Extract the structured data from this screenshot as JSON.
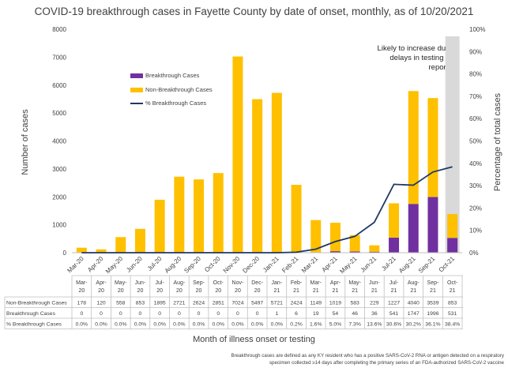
{
  "chart_data": {
    "type": "bar",
    "title": "COVID-19 breakthrough cases in Fayette County by date of onset, monthly, as of 10/20/2021",
    "xlabel": "Month of illness onset or testing",
    "ylabel": "Number of cases",
    "y2label": "Percentage of total cases",
    "ylim": [
      0,
      8000
    ],
    "y2lim": [
      0,
      100
    ],
    "yticks": [
      "0",
      "1000",
      "2000",
      "3000",
      "4000",
      "5000",
      "6000",
      "7000",
      "8000"
    ],
    "y2ticks": [
      "0%",
      "10%",
      "20%",
      "30%",
      "40%",
      "50%",
      "60%",
      "70%",
      "80%",
      "90%",
      "100%"
    ],
    "categories": [
      "Mar-20",
      "Apr-20",
      "May-20",
      "Jun-20",
      "Jul-20",
      "Aug-20",
      "Sep-20",
      "Oct-20",
      "Nov-20",
      "Dec-20",
      "Jan-21",
      "Feb-21",
      "Mar-21",
      "Apr-21",
      "May-21",
      "Jun-21",
      "Jul-21",
      "Aug-21",
      "Sep-21",
      "Oct-21"
    ],
    "table_categories": [
      [
        "Mar-",
        "20"
      ],
      [
        "Apr-",
        "20"
      ],
      [
        "May-",
        "20"
      ],
      [
        "Jun-",
        "20"
      ],
      [
        "Jul-",
        "20"
      ],
      [
        "Aug-",
        "20"
      ],
      [
        "Sep-",
        "20"
      ],
      [
        "Oct-",
        "20"
      ],
      [
        "Nov-",
        "20"
      ],
      [
        "Dec-",
        "20"
      ],
      [
        "Jan-",
        "21"
      ],
      [
        "Feb-",
        "21"
      ],
      [
        "Mar-",
        "21"
      ],
      [
        "Apr-",
        "21"
      ],
      [
        "May-",
        "21"
      ],
      [
        "Jun-",
        "21"
      ],
      [
        "Jul-",
        "21"
      ],
      [
        "Aug-",
        "21"
      ],
      [
        "Sep-",
        "21"
      ],
      [
        "Oct-",
        "21"
      ]
    ],
    "series": [
      {
        "name": "Breakthrough Cases",
        "type": "bar",
        "color": "#7030a0",
        "values": [
          0,
          0,
          0,
          0,
          0,
          0,
          0,
          0,
          0,
          0,
          1,
          6,
          19,
          54,
          46,
          36,
          541,
          1747,
          1996,
          531
        ]
      },
      {
        "name": "Non-Breakthrough Cases",
        "type": "bar",
        "color": "#ffc000",
        "values": [
          178,
          120,
          558,
          853,
          1895,
          2721,
          2624,
          2851,
          7024,
          5497,
          5721,
          2424,
          1149,
          1019,
          583,
          229,
          1227,
          4040,
          3539,
          853
        ]
      },
      {
        "name": "% Breakthrough Cases",
        "type": "line",
        "axis": "right",
        "color": "#1f3864",
        "values": [
          0.0,
          0.0,
          0.0,
          0.0,
          0.0,
          0.0,
          0.0,
          0.0,
          0.0,
          0.0,
          0.0,
          0.2,
          1.6,
          5.0,
          7.3,
          13.6,
          30.6,
          30.2,
          36.1,
          38.4
        ]
      }
    ],
    "table": {
      "rows": [
        {
          "label": "Non-Breakthrough Cases",
          "values": [
            "178",
            "120",
            "558",
            "853",
            "1895",
            "2721",
            "2624",
            "2851",
            "7024",
            "5497",
            "5721",
            "2424",
            "1149",
            "1019",
            "583",
            "229",
            "1227",
            "4040",
            "3539",
            "853"
          ]
        },
        {
          "label": "Breakthrough Cases",
          "values": [
            "0",
            "0",
            "0",
            "0",
            "0",
            "0",
            "0",
            "0",
            "0",
            "0",
            "1",
            "6",
            "19",
            "54",
            "46",
            "36",
            "541",
            "1747",
            "1996",
            "531"
          ]
        },
        {
          "label": "% Breakthrough Cases",
          "values": [
            "0.0%",
            "0.0%",
            "0.0%",
            "0.0%",
            "0.0%",
            "0.0%",
            "0.0%",
            "0.0%",
            "0.0%",
            "0.0%",
            "0.0%",
            "0.2%",
            "1.6%",
            "5.0%",
            "7.3%",
            "13.6%",
            "30.6%",
            "30.2%",
            "36.1%",
            "38.4%"
          ]
        }
      ]
    },
    "legend": [
      "Breakthrough Cases",
      "Non-Breakthrough Cases",
      "% Breakthrough Cases"
    ],
    "legend_position": "upper-left",
    "highlight_categories": [
      "Oct-21"
    ],
    "highlight_color": "#d9d9d9",
    "annotation": "Likely to increase due to delays in testing and reporting",
    "grid": false
  },
  "footnote": {
    "line1": "Breakthrough cases are defined as any KY resident who has a positive SARS-CoV-2 RNA or antigen detected on a respiratory",
    "line2": "specimen collected ≥14 days after completing the primary series of an FDA-authorized SARS-CoV-2 vaccine"
  }
}
